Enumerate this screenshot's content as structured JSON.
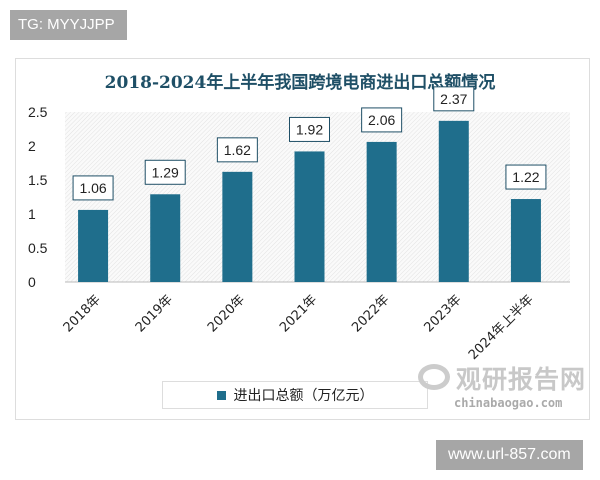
{
  "watermarks": {
    "tg": "TG: MYYJJPP",
    "url": "www.url-857.com",
    "logo_cn": "观研报告网",
    "logo_en": "chinabaogao.com"
  },
  "chart_data": {
    "type": "bar",
    "title": "2018-2024年上半年我国跨境电商进出口总额情况",
    "categories": [
      "2018年",
      "2019年",
      "2020年",
      "2021年",
      "2022年",
      "2023年",
      "2024年上半年"
    ],
    "series": [
      {
        "name": "进出口总额（万亿元）",
        "values": [
          1.06,
          1.29,
          1.62,
          1.92,
          2.06,
          2.37,
          1.22
        ]
      }
    ],
    "data_labels": [
      "1.06",
      "1.29",
      "1.62",
      "1.92",
      "2.06",
      "2.37",
      "1.22"
    ],
    "yticks": [
      "0",
      "0.5",
      "1",
      "1.5",
      "2",
      "2.5"
    ],
    "ylim": [
      0,
      2.5
    ],
    "grid": false,
    "legend": "bottom",
    "colors": {
      "bar": "#1f6e8c"
    }
  }
}
